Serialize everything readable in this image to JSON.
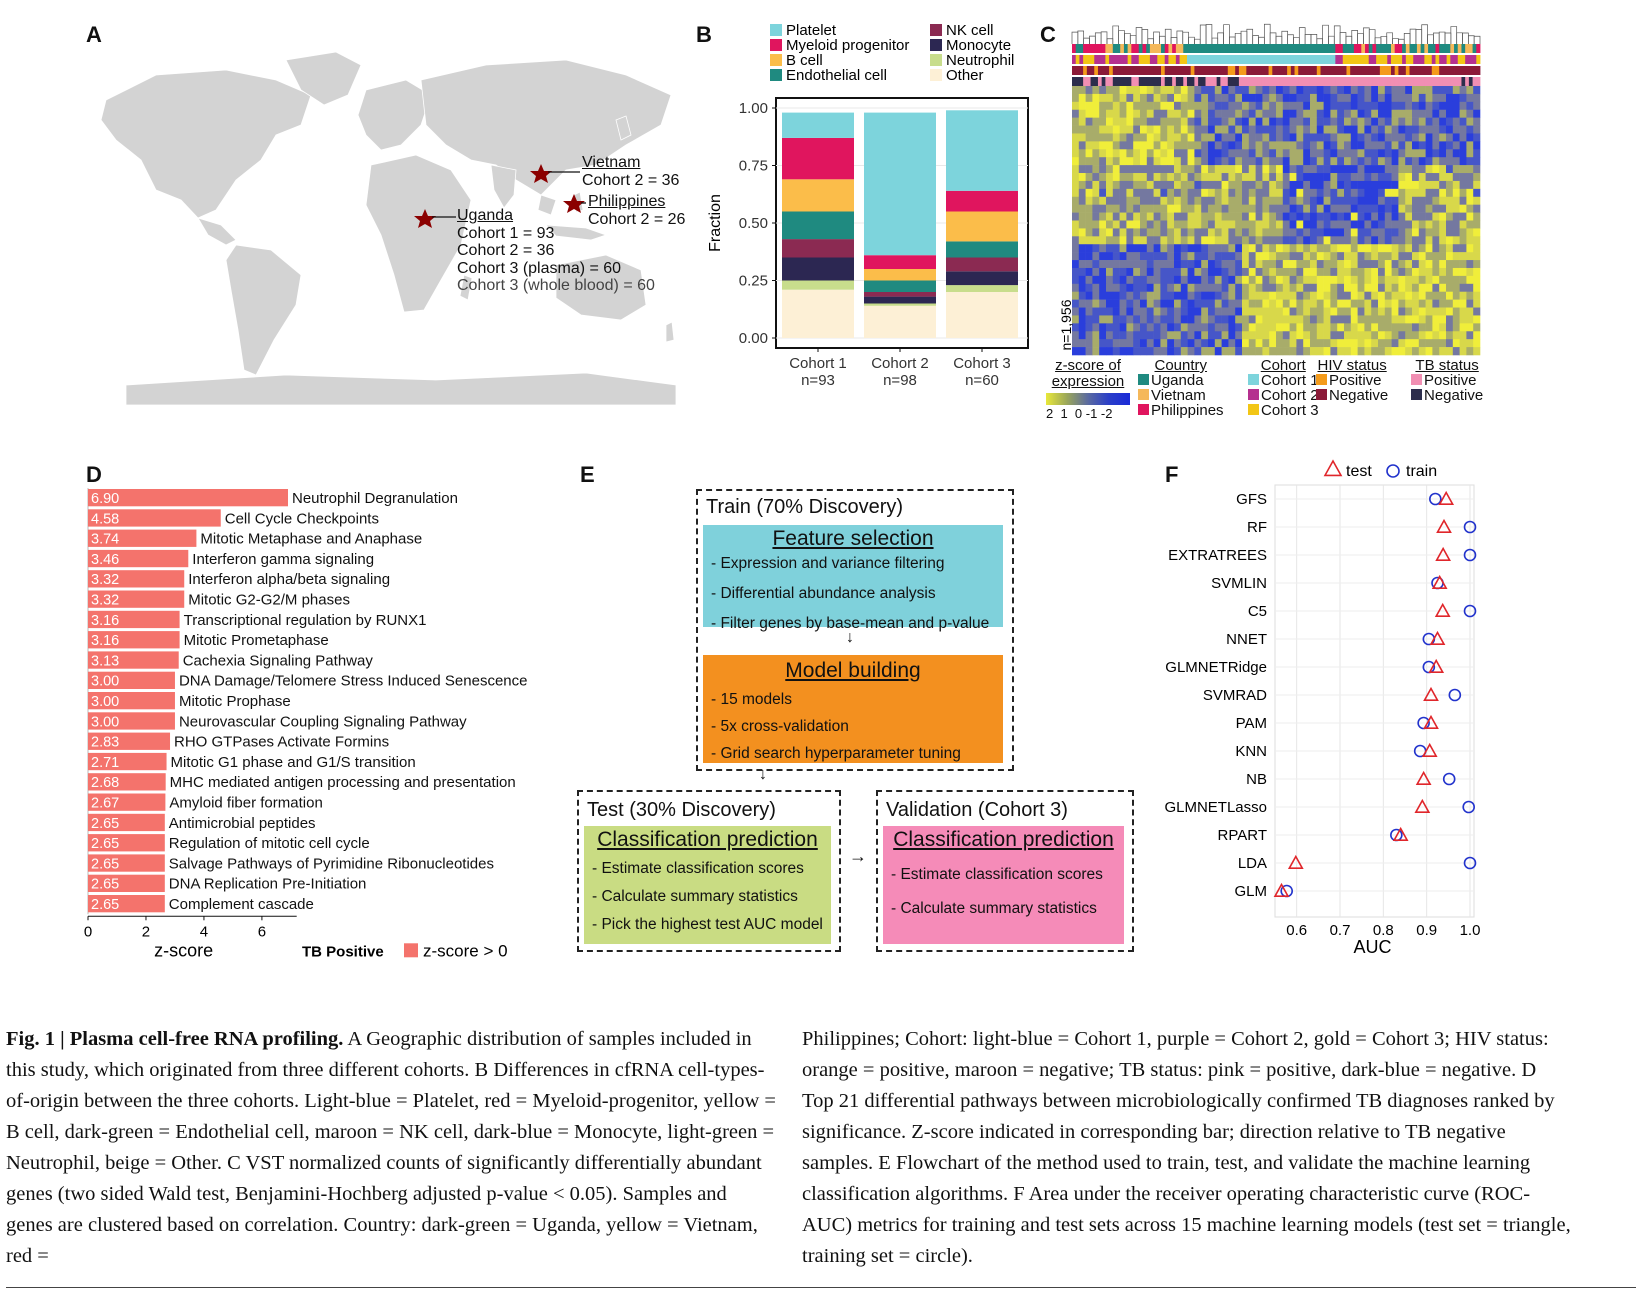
{
  "panel_letters": {
    "a": "A",
    "b": "B",
    "c": "C",
    "d": "D",
    "e": "E",
    "f": "F"
  },
  "map": {
    "labels": [
      {
        "name": "Vietnam",
        "lines": [
          "Cohort 2 = 36"
        ]
      },
      {
        "name": "Philippines",
        "lines": [
          "Cohort 2 = 26"
        ]
      },
      {
        "name": "Uganda",
        "lines": [
          "Cohort 1 = 93",
          "Cohort 2 = 36",
          "Cohort 3 (plasma) = 60",
          "Cohort 3 (whole blood) = 60"
        ]
      }
    ],
    "colors": {
      "land": "#d3d3d3",
      "star": "#8b0000"
    }
  },
  "panel_b": {
    "legend": [
      {
        "label": "Platelet",
        "color": "#7dd4dc"
      },
      {
        "label": "Myeloid progenitor",
        "color": "#e0155e"
      },
      {
        "label": "B cell",
        "color": "#fbbd4a"
      },
      {
        "label": "Endothelial cell",
        "color": "#1f8a80"
      },
      {
        "label": "NK cell",
        "color": "#8b2a52"
      },
      {
        "label": "Monocyte",
        "color": "#2c2752"
      },
      {
        "label": "Neutrophil",
        "color": "#c8dd8c"
      },
      {
        "label": "Other",
        "color": "#fdf0d6"
      }
    ],
    "ylabel": "Fraction",
    "yticks": [
      "0.00",
      "0.25",
      "0.50",
      "0.75",
      "1.00"
    ]
  },
  "chart_data": [
    {
      "type": "bar",
      "stacked": true,
      "categories": [
        "Cohort 1\nn=93",
        "Cohort 2\nn=98",
        "Cohort 3\nn=60"
      ],
      "category_lines": [
        [
          "Cohort 1",
          "n=93"
        ],
        [
          "Cohort 2",
          "n=98"
        ],
        [
          "Cohort 3",
          "n=60"
        ]
      ],
      "ylabel": "Fraction",
      "ylim": [
        0,
        1
      ],
      "series": [
        {
          "name": "Other",
          "values": [
            0.21,
            0.14,
            0.2
          ]
        },
        {
          "name": "Neutrophil",
          "values": [
            0.04,
            0.01,
            0.03
          ]
        },
        {
          "name": "Monocyte",
          "values": [
            0.1,
            0.03,
            0.06
          ]
        },
        {
          "name": "NK cell",
          "values": [
            0.08,
            0.02,
            0.06
          ]
        },
        {
          "name": "Endothelial cell",
          "values": [
            0.12,
            0.05,
            0.07
          ]
        },
        {
          "name": "B cell",
          "values": [
            0.14,
            0.05,
            0.13
          ]
        },
        {
          "name": "Myeloid progenitor",
          "values": [
            0.18,
            0.06,
            0.09
          ]
        },
        {
          "name": "Platelet",
          "values": [
            0.11,
            0.62,
            0.35
          ]
        }
      ]
    },
    {
      "type": "bar",
      "orientation": "horizontal",
      "xlabel": "z-score",
      "xticks": [
        "0",
        "2",
        "4",
        "6"
      ],
      "xlim": [
        0,
        7.2
      ],
      "legend_title": "TB Positive",
      "legend_label": "z-score > 0",
      "color": "#f4736c",
      "bars": [
        {
          "label": "Neutrophil Degranulation",
          "value": "6.90"
        },
        {
          "label": "Cell Cycle Checkpoints",
          "value": "4.58"
        },
        {
          "label": "Mitotic Metaphase and Anaphase",
          "value": "3.74"
        },
        {
          "label": "Interferon gamma signaling",
          "value": "3.46"
        },
        {
          "label": "Interferon alpha/beta signaling",
          "value": "3.32"
        },
        {
          "label": "Mitotic G2-G2/M phases",
          "value": "3.32"
        },
        {
          "label": "Transcriptional regulation by RUNX1",
          "value": "3.16"
        },
        {
          "label": "Mitotic Prometaphase",
          "value": "3.16"
        },
        {
          "label": "Cachexia Signaling Pathway",
          "value": "3.13"
        },
        {
          "label": "DNA Damage/Telomere Stress Induced Senescence",
          "value": "3.00"
        },
        {
          "label": "Mitotic Prophase",
          "value": "3.00"
        },
        {
          "label": "Neurovascular Coupling Signaling Pathway",
          "value": "3.00"
        },
        {
          "label": "RHO GTPases Activate Formins",
          "value": "2.83"
        },
        {
          "label": "Mitotic G1 phase and G1/S transition",
          "value": "2.71"
        },
        {
          "label": "MHC mediated antigen processing and presentation",
          "value": "2.68"
        },
        {
          "label": "Amyloid fiber formation",
          "value": "2.67"
        },
        {
          "label": "Antimicrobial peptides",
          "value": "2.65"
        },
        {
          "label": "Regulation of mitotic cell cycle",
          "value": "2.65"
        },
        {
          "label": "Salvage Pathways of Pyrimidine Ribonucleotides",
          "value": "2.65"
        },
        {
          "label": "DNA Replication Pre-Initiation",
          "value": "2.65"
        },
        {
          "label": "Complement cascade",
          "value": "2.65"
        }
      ]
    },
    {
      "type": "scatter",
      "xlabel": "AUC",
      "xticks": [
        "0.6",
        "0.7",
        "0.8",
        "0.9",
        "1.0"
      ],
      "xlim": [
        0.55,
        1.0
      ],
      "legend": [
        {
          "name": "test",
          "marker": "triangle",
          "color": "#e0262b"
        },
        {
          "name": "train",
          "marker": "circle",
          "color": "#2233cc"
        }
      ],
      "models": [
        {
          "name": "GFS",
          "test": 0.945,
          "train": 0.92
        },
        {
          "name": "RF",
          "test": 0.94,
          "train": 1.0
        },
        {
          "name": "EXTRATREES",
          "test": 0.938,
          "train": 1.0
        },
        {
          "name": "SVMLIN",
          "test": 0.93,
          "train": 0.925
        },
        {
          "name": "C5",
          "test": 0.937,
          "train": 1.0
        },
        {
          "name": "NNET",
          "test": 0.925,
          "train": 0.905
        },
        {
          "name": "GLMNETRidge",
          "test": 0.922,
          "train": 0.905
        },
        {
          "name": "SVMRAD",
          "test": 0.91,
          "train": 0.965
        },
        {
          "name": "PAM",
          "test": 0.91,
          "train": 0.893
        },
        {
          "name": "KNN",
          "test": 0.907,
          "train": 0.885
        },
        {
          "name": "NB",
          "test": 0.893,
          "train": 0.952
        },
        {
          "name": "GLMNETLasso",
          "test": 0.89,
          "train": 0.997
        },
        {
          "name": "RPART",
          "test": 0.84,
          "train": 0.83
        },
        {
          "name": "LDA",
          "test": 0.598,
          "train": 1.0
        },
        {
          "name": "GLM",
          "test": 0.565,
          "train": 0.577
        }
      ]
    }
  ],
  "panel_c": {
    "ylabel": "n=1,956",
    "scale_title": [
      "z-score of",
      "expression"
    ],
    "scale_ticks": "2  1  0 -1 -2",
    "legends": [
      {
        "title": "Country",
        "items": [
          {
            "label": "Uganda",
            "color": "#1f8a80"
          },
          {
            "label": "Vietnam",
            "color": "#f5b85a"
          },
          {
            "label": "Philippines",
            "color": "#e0155e"
          }
        ]
      },
      {
        "title": "Cohort",
        "items": [
          {
            "label": "Cohort 1",
            "color": "#7dd4dc"
          },
          {
            "label": "Cohort 2",
            "color": "#b5308f"
          },
          {
            "label": "Cohort 3",
            "color": "#f2c616"
          }
        ]
      },
      {
        "title": "HIV status",
        "items": [
          {
            "label": "Positive",
            "color": "#f49b1b"
          },
          {
            "label": "Negative",
            "color": "#8b1a38"
          }
        ]
      },
      {
        "title": "TB status",
        "items": [
          {
            "label": "Positive",
            "color": "#f18fb3"
          },
          {
            "label": "Negative",
            "color": "#2c2d4c"
          }
        ]
      }
    ]
  },
  "panel_e": {
    "train_title": "Train (70% Discovery)",
    "feature": {
      "title": "Feature selection",
      "items": [
        "- Expression and variance filtering",
        "- Differential abundance analysis",
        "- Filter genes by base-mean and p-value"
      ],
      "color": "#7fd1db"
    },
    "model": {
      "title": "Model building",
      "items": [
        "- 15 models",
        "- 5x cross-validation",
        "- Grid search hyperparameter tuning"
      ],
      "color": "#f3901f"
    },
    "test_title": "Test (30% Discovery)",
    "test": {
      "title": "Classification prediction",
      "items": [
        "- Estimate classification scores",
        "- Calculate summary statistics",
        "- Pick the highest test AUC model"
      ],
      "color": "#c9dc83"
    },
    "val_title": "Validation (Cohort 3)",
    "val": {
      "title": "Classification prediction",
      "items": [
        "- Estimate classification scores",
        "- Calculate summary statistics"
      ],
      "color": "#f58bb8"
    }
  },
  "caption": {
    "fig": "Fig. 1 | Plasma cell-free RNA profiling.",
    "left": "A Geographic distribution of samples included in this study, which originated from three different cohorts. B Differences in cfRNA cell-types-of-origin between the three cohorts. Light-blue = Platelet, red = Myeloid-progenitor, yellow = B cell, dark-green = Endothelial cell, maroon = NK cell, dark-blue = Monocyte, light-green = Neutrophil, beige = Other. C VST normalized counts of significantly differentially abundant genes (two sided Wald test, Benjamini-Hochberg adjusted p-value < 0.05). Samples and genes are clustered based on correlation. Country: dark-green = Uganda, yellow = Vietnam, red =",
    "right": "Philippines; Cohort: light-blue = Cohort 1, purple = Cohort 2, gold = Cohort 3; HIV status: orange = positive, maroon = negative; TB status: pink = positive, dark-blue = negative. D Top 21 differential pathways between microbiologically confirmed TB diagnoses ranked by significance. Z-score indicated in corresponding bar; direction relative to TB negative samples. E Flowchart of the method used to train, test, and validate the machine learning classification algorithms. F Area under the receiver operating characteristic curve (ROC-AUC) metrics for training and test sets across 15 machine learning models (test set = triangle, training set = circle)."
  }
}
